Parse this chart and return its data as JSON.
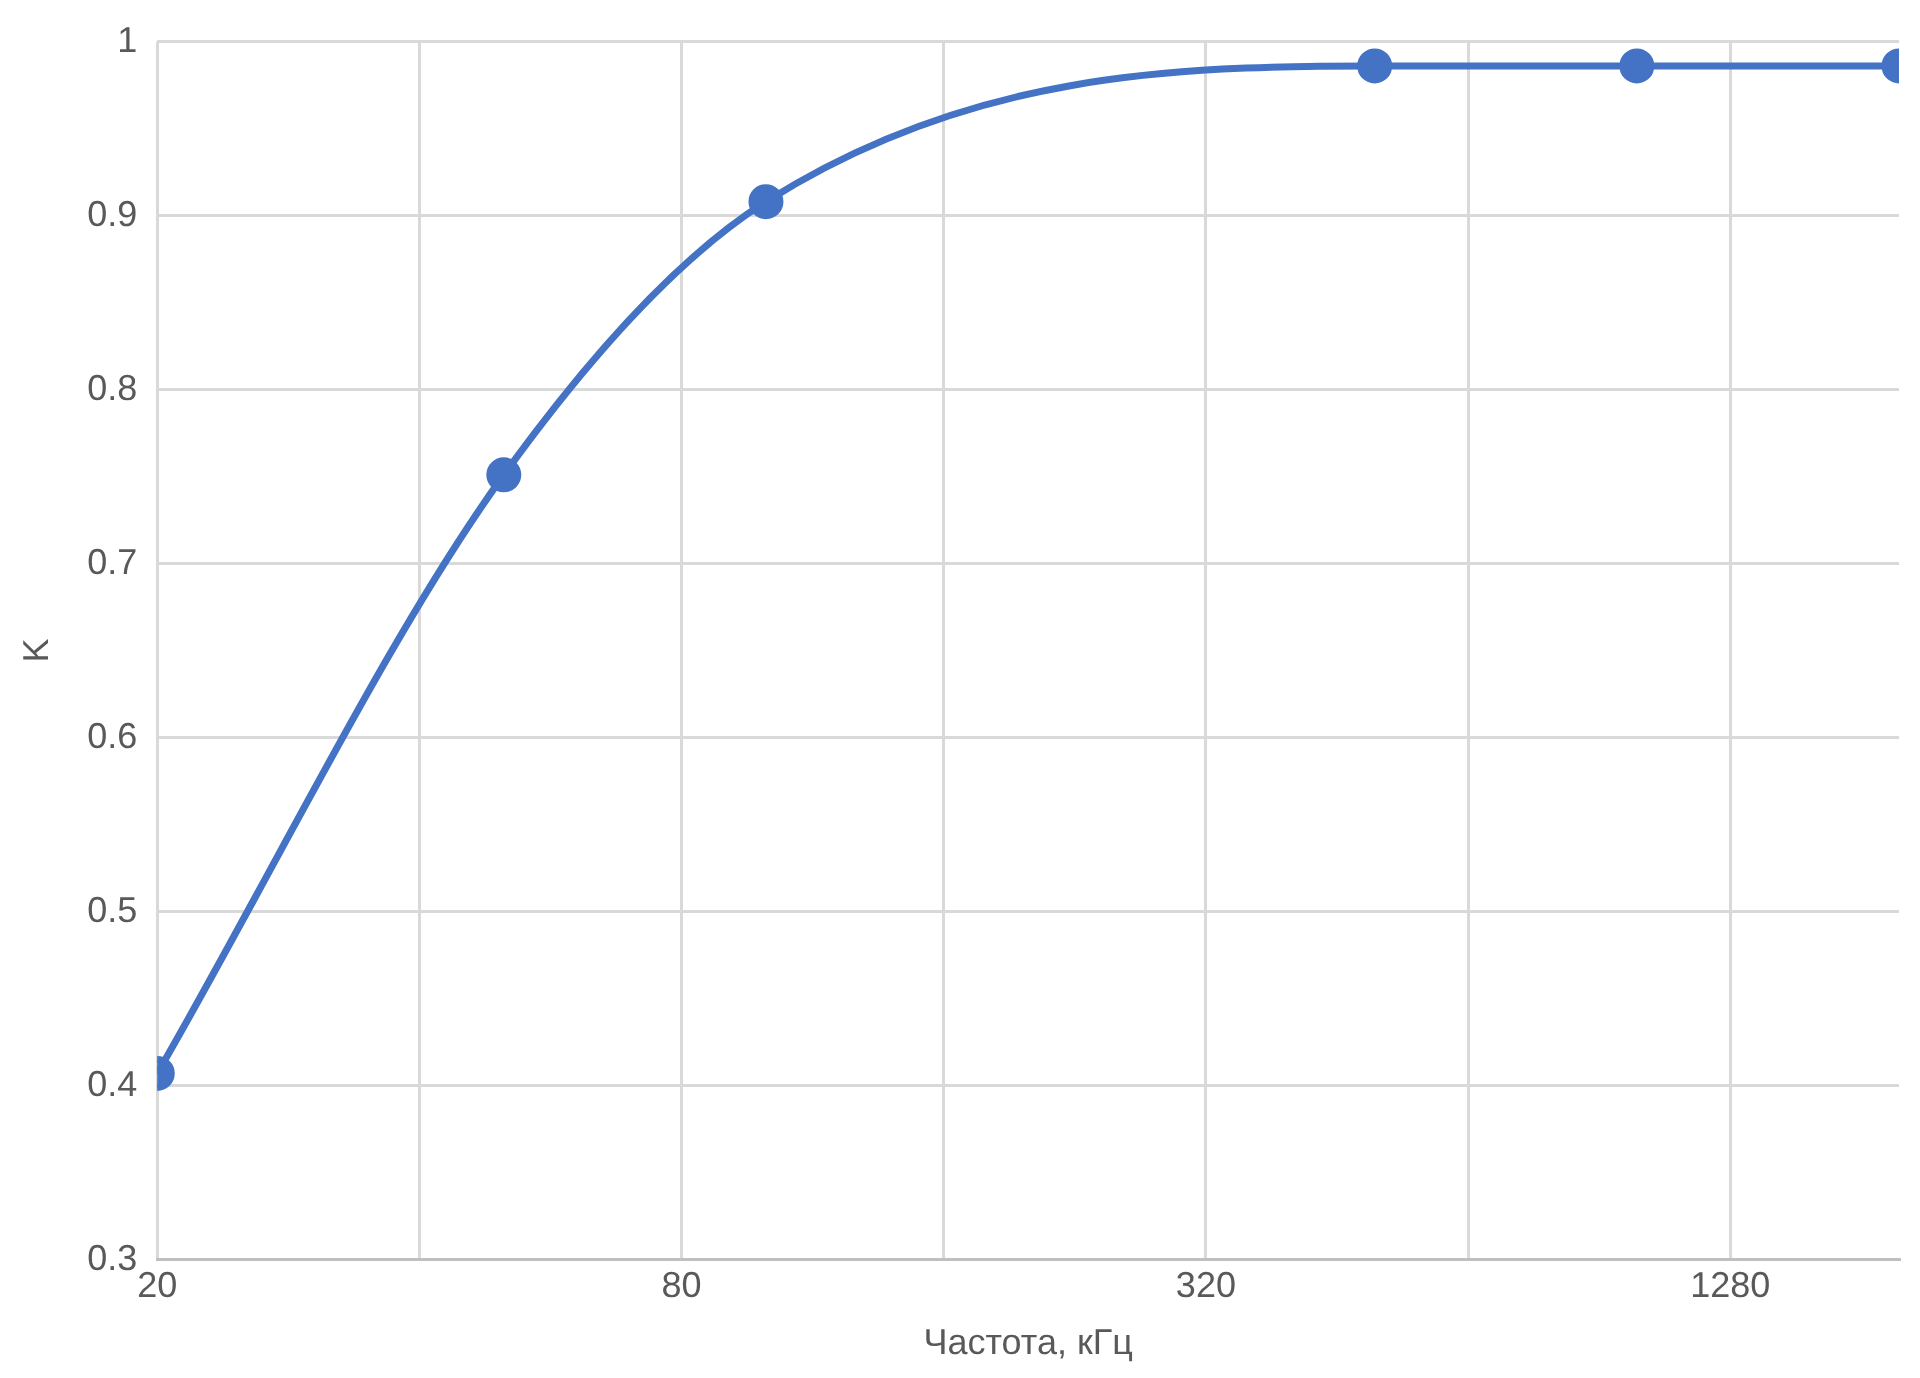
{
  "chart_data": {
    "type": "line",
    "xlabel": "Частота, кГц",
    "ylabel": "K",
    "log": "x",
    "x": [
      20,
      50,
      100,
      500,
      1000,
      2000
    ],
    "series": [
      {
        "color": "#4472c4",
        "values": [
          0.407,
          0.751,
          0.908,
          0.986,
          0.986,
          0.986
        ]
      }
    ],
    "xlim": [
      20,
      2000
    ],
    "xticks": [
      20,
      {
        "value": 40,
        "label": null
      },
      80,
      {
        "value": 160,
        "label": null
      },
      320,
      {
        "value": 640,
        "label": null
      },
      1280
    ],
    "ylim": [
      0.3,
      1
    ],
    "yticks": [
      0.3,
      0.4,
      0.5,
      0.6,
      0.7,
      0.8,
      0.9,
      1
    ],
    "grid": true,
    "legend": false,
    "marker": "circle",
    "line_style": "solid"
  }
}
